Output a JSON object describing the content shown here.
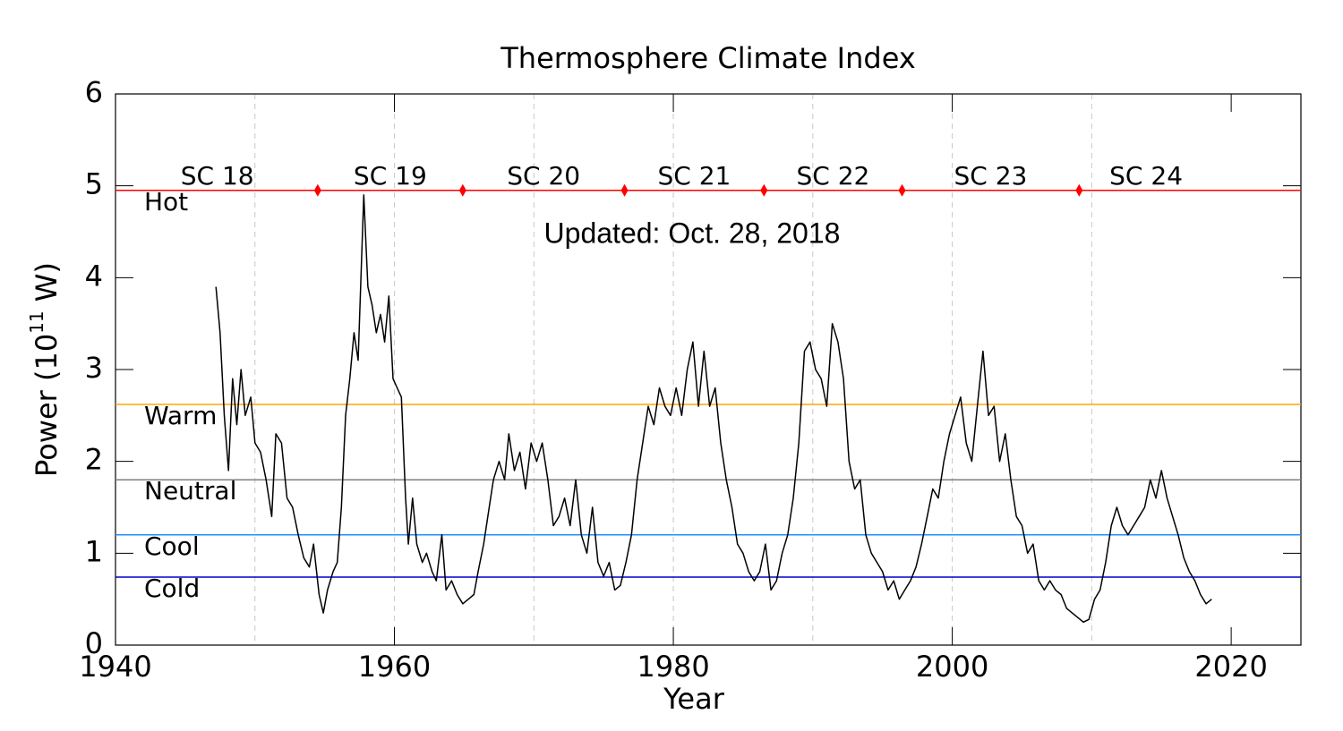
{
  "chart_data": {
    "type": "line",
    "title": "Thermosphere Climate Index",
    "xlabel": "Year",
    "ylabel": "Power (10",
    "ylabel_exponent": "11",
    "ylabel_suffix": " W)",
    "annotation": "Updated: Oct. 28, 2018",
    "annotation_color": "#ff0000",
    "xlim": [
      1940,
      2025
    ],
    "ylim": [
      0,
      6
    ],
    "xticks": [
      1940,
      1960,
      1980,
      2000,
      2020
    ],
    "yticks": [
      0,
      1,
      2,
      3,
      4,
      5,
      6
    ],
    "grid_x": [
      1950,
      1960,
      1970,
      1980,
      1990,
      2000,
      2010
    ],
    "levels": [
      {
        "name": "Hot",
        "value": 4.95,
        "color": "#ff0000"
      },
      {
        "name": "Warm",
        "value": 2.62,
        "color": "#ffa500"
      },
      {
        "name": "Neutral",
        "value": 1.8,
        "color": "#808080"
      },
      {
        "name": "Cool",
        "value": 1.2,
        "color": "#1e90ff"
      },
      {
        "name": "Cold",
        "value": 0.74,
        "color": "#0000cd"
      }
    ],
    "cycles": [
      "SC 18",
      "SC 19",
      "SC 20",
      "SC 21",
      "SC 22",
      "SC 23",
      "SC 24"
    ],
    "cycle_boundaries": [
      1954.5,
      1964.9,
      1976.5,
      1986.5,
      1996.4,
      2009.1
    ],
    "boundary_color": "#ff0000",
    "color": "#000000",
    "x": [
      1947.2,
      1947.5,
      1947.8,
      1948.1,
      1948.4,
      1948.7,
      1949.0,
      1949.3,
      1949.7,
      1950.0,
      1950.4,
      1950.8,
      1951.2,
      1951.5,
      1951.9,
      1952.3,
      1952.7,
      1953.1,
      1953.5,
      1953.9,
      1954.2,
      1954.6,
      1954.9,
      1955.2,
      1955.6,
      1955.9,
      1956.2,
      1956.5,
      1956.8,
      1957.1,
      1957.4,
      1957.8,
      1958.1,
      1958.4,
      1958.7,
      1959.0,
      1959.3,
      1959.6,
      1959.9,
      1960.2,
      1960.5,
      1960.8,
      1961.0,
      1961.3,
      1961.6,
      1962.0,
      1962.3,
      1962.7,
      1963.0,
      1963.4,
      1963.7,
      1964.1,
      1964.5,
      1964.9,
      1965.3,
      1965.7,
      1966.0,
      1966.4,
      1966.8,
      1967.1,
      1967.5,
      1967.9,
      1968.2,
      1968.6,
      1969.0,
      1969.4,
      1969.8,
      1970.2,
      1970.6,
      1971.0,
      1971.4,
      1971.8,
      1972.2,
      1972.6,
      1973.0,
      1973.4,
      1973.8,
      1974.2,
      1974.6,
      1975.0,
      1975.4,
      1975.8,
      1976.2,
      1976.6,
      1977.0,
      1977.4,
      1977.8,
      1978.2,
      1978.6,
      1979.0,
      1979.4,
      1979.8,
      1980.2,
      1980.6,
      1981.0,
      1981.4,
      1981.8,
      1982.2,
      1982.6,
      1983.0,
      1983.4,
      1983.8,
      1984.2,
      1984.6,
      1985.0,
      1985.4,
      1985.8,
      1986.2,
      1986.6,
      1987.0,
      1987.4,
      1987.8,
      1988.2,
      1988.6,
      1989.0,
      1989.4,
      1989.8,
      1990.2,
      1990.6,
      1991.0,
      1991.4,
      1991.8,
      1992.2,
      1992.6,
      1993.0,
      1993.4,
      1993.8,
      1994.2,
      1994.6,
      1995.0,
      1995.4,
      1995.8,
      1996.2,
      1996.6,
      1997.0,
      1997.4,
      1997.8,
      1998.2,
      1998.6,
      1999.0,
      1999.4,
      1999.8,
      2000.2,
      2000.6,
      2001.0,
      2001.4,
      2001.8,
      2002.2,
      2002.6,
      2003.0,
      2003.4,
      2003.8,
      2004.2,
      2004.6,
      2005.0,
      2005.4,
      2005.8,
      2006.2,
      2006.6,
      2007.0,
      2007.4,
      2007.8,
      2008.2,
      2008.6,
      2009.0,
      2009.4,
      2009.8,
      2010.2,
      2010.6,
      2011.0,
      2011.4,
      2011.8,
      2012.2,
      2012.6,
      2013.0,
      2013.4,
      2013.8,
      2014.2,
      2014.6,
      2015.0,
      2015.4,
      2015.8,
      2016.2,
      2016.6,
      2017.0,
      2017.4,
      2017.8,
      2018.2,
      2018.6
    ],
    "values": [
      3.9,
      3.4,
      2.5,
      1.9,
      2.9,
      2.4,
      3.0,
      2.5,
      2.7,
      2.2,
      2.1,
      1.8,
      1.4,
      2.3,
      2.2,
      1.6,
      1.5,
      1.2,
      0.95,
      0.85,
      1.1,
      0.55,
      0.35,
      0.6,
      0.8,
      0.9,
      1.5,
      2.5,
      2.9,
      3.4,
      3.1,
      4.9,
      3.9,
      3.7,
      3.4,
      3.6,
      3.3,
      3.8,
      2.9,
      2.8,
      2.7,
      1.6,
      1.1,
      1.6,
      1.1,
      0.9,
      1.0,
      0.8,
      0.7,
      1.2,
      0.6,
      0.7,
      0.55,
      0.45,
      0.5,
      0.55,
      0.8,
      1.1,
      1.5,
      1.8,
      2.0,
      1.8,
      2.3,
      1.9,
      2.1,
      1.7,
      2.2,
      2.0,
      2.2,
      1.8,
      1.3,
      1.4,
      1.6,
      1.3,
      1.8,
      1.2,
      1.0,
      1.5,
      0.9,
      0.75,
      0.9,
      0.6,
      0.65,
      0.9,
      1.2,
      1.8,
      2.2,
      2.6,
      2.4,
      2.8,
      2.6,
      2.5,
      2.8,
      2.5,
      3.0,
      3.3,
      2.6,
      3.2,
      2.6,
      2.8,
      2.2,
      1.8,
      1.5,
      1.1,
      1.0,
      0.8,
      0.7,
      0.8,
      1.1,
      0.6,
      0.7,
      1.0,
      1.2,
      1.6,
      2.2,
      3.2,
      3.3,
      3.0,
      2.9,
      2.6,
      3.5,
      3.3,
      2.9,
      2.0,
      1.7,
      1.8,
      1.2,
      1.0,
      0.9,
      0.8,
      0.6,
      0.7,
      0.5,
      0.6,
      0.7,
      0.85,
      1.1,
      1.4,
      1.7,
      1.6,
      2.0,
      2.3,
      2.5,
      2.7,
      2.2,
      2.0,
      2.6,
      3.2,
      2.5,
      2.6,
      2.0,
      2.3,
      1.8,
      1.4,
      1.3,
      1.0,
      1.1,
      0.7,
      0.6,
      0.7,
      0.6,
      0.55,
      0.4,
      0.35,
      0.3,
      0.25,
      0.28,
      0.5,
      0.6,
      0.9,
      1.3,
      1.5,
      1.3,
      1.2,
      1.3,
      1.4,
      1.5,
      1.8,
      1.6,
      1.9,
      1.6,
      1.4,
      1.2,
      0.95,
      0.8,
      0.7,
      0.55,
      0.45,
      0.5
    ]
  }
}
